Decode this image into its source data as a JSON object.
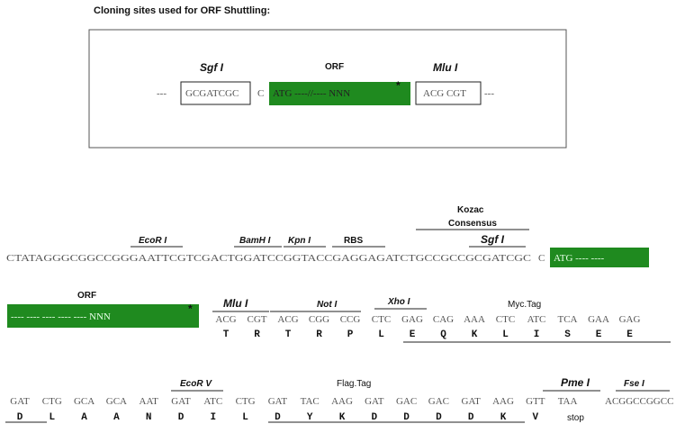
{
  "title": "Cloning sites used for ORF Shuttling:",
  "top_box": {
    "sgf_label": "Sgf I",
    "orf_label": "ORF",
    "mlu_label": "Mlu I",
    "dashes_left": "---",
    "sgf_seq": "GCGATCGC",
    "c": "C",
    "orf_seq": "ATG  ----//----  NNN",
    "star": "*",
    "mlu_seq": "ACG CGT",
    "dashes_right": "---"
  },
  "row1": {
    "kozac": "Kozac",
    "consensus": "Consensus",
    "ecori": "EcoR I",
    "bamhi": "BamH I",
    "kpni": "Kpn I",
    "rbs": "RBS",
    "sgfi": "Sgf I",
    "sequence": "CTATAGGGCGGCCGGGAATTCGTCGACTGGATCCGGTACCGAGGAGATCTGCCGCCGCGATCGC",
    "c": "C",
    "atg": "ATG  ----  ----"
  },
  "row2": {
    "orf": "ORF",
    "orf_seq": "----  ----  ----  ----  ----  NNN",
    "star": "*",
    "mlui": "Mlu I",
    "noti": "Not I",
    "xhoi": "Xho I",
    "myc": "Myc.Tag",
    "codons": [
      "ACG",
      "CGT",
      "ACG",
      "CGG",
      "CCG",
      "CTC",
      "GAG",
      "CAG",
      "AAA",
      "CTC",
      "ATC",
      "TCA",
      "GAA",
      "GAG"
    ],
    "aas": [
      "T",
      "R",
      "T",
      "R",
      "P",
      "L",
      "E",
      "Q",
      "K",
      "L",
      "I",
      "S",
      "E",
      "E"
    ]
  },
  "row3": {
    "ecorv": "EcoR V",
    "flag": "Flag.Tag",
    "pmei": "Pme I",
    "fsei": "Fse I",
    "codons": [
      "GAT",
      "CTG",
      "GCA",
      "GCA",
      "AAT",
      "GAT",
      "ATC",
      "CTG",
      "GAT",
      "TAC",
      "AAG",
      "GAT",
      "GAC",
      "GAC",
      "GAT",
      "AAG",
      "GTT",
      "TAA"
    ],
    "tail": "ACGGCCGGCC",
    "aas": [
      "D",
      "L",
      "A",
      "A",
      "N",
      "D",
      "I",
      "L",
      "D",
      "Y",
      "K",
      "D",
      "D",
      "D",
      "D",
      "K",
      "V"
    ],
    "stop": "stop"
  },
  "colors": {
    "green": "#1f8a1f"
  }
}
